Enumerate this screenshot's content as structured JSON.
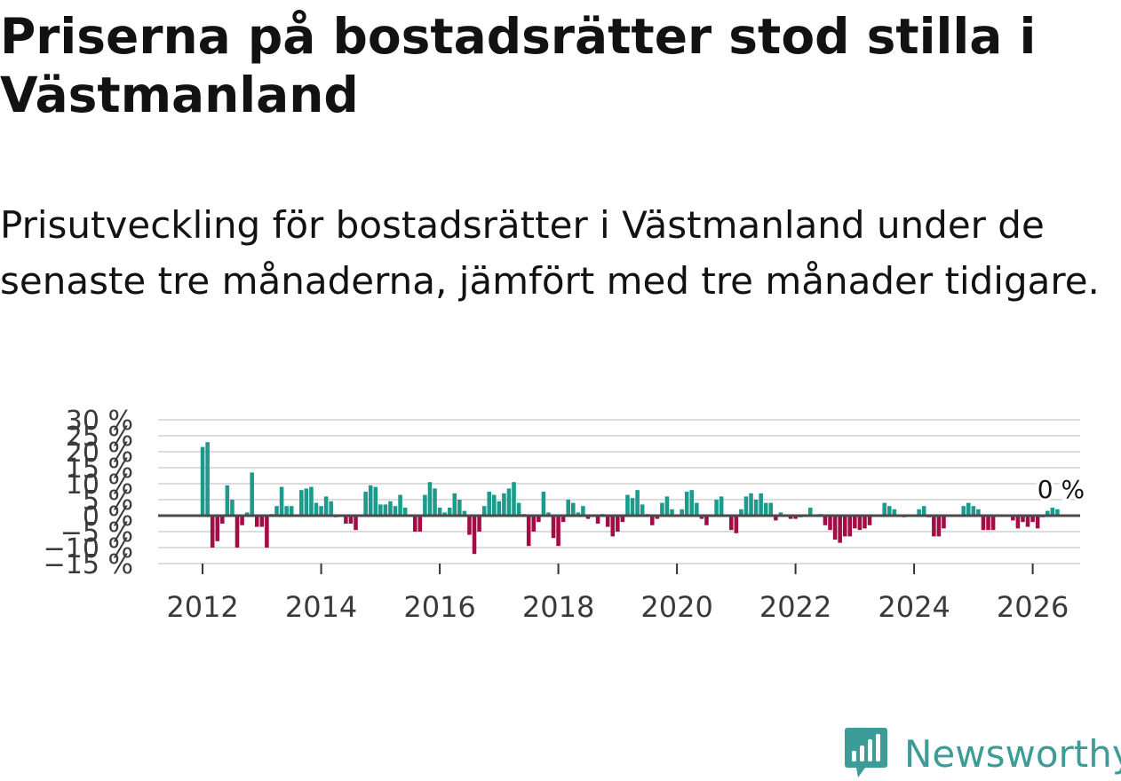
{
  "colors": {
    "positive": "#1a9b8b",
    "negative": "#a30c45",
    "zero_line": "#4a4a4a",
    "grid": "#dcdcdc",
    "brand": "#3d9c97"
  },
  "logo": {
    "text": "Newsworthy",
    "icon": "newsworthy-logo-icon"
  },
  "chart_data": {
    "type": "bar",
    "title": "Priserna på bostadsrätter stod stilla i Västmanland",
    "subtitle": "Prisutveckling för bostadsrätter i Västmanland under de senaste tre månaderna, jämfört med tre månader tidigare.",
    "xlabel": "",
    "ylabel": "",
    "ylim": [
      -15,
      30
    ],
    "xlim": [
      2011.25,
      2026.8
    ],
    "y_ticks": [
      -15,
      -10,
      -5,
      0,
      5,
      10,
      15,
      20,
      25,
      30
    ],
    "y_tick_labels": [
      "−15 %",
      "−10 %",
      "−5 %",
      "0 %",
      "5 %",
      "10 %",
      "15 %",
      "20 %",
      "25 %",
      "30 %"
    ],
    "x_ticks": [
      2012,
      2014,
      2016,
      2018,
      2020,
      2022,
      2024,
      2026
    ],
    "x_tick_labels": [
      "2012",
      "2014",
      "2016",
      "2018",
      "2020",
      "2022",
      "2024",
      "2026"
    ],
    "annotation": "0 %",
    "start": [
      2012,
      1
    ],
    "values": [
      21.5,
      23.0,
      -10.0,
      -8.0,
      -2.5,
      9.5,
      5.0,
      -10.0,
      -3.0,
      1.0,
      13.5,
      -3.5,
      -3.5,
      -10.0,
      0.5,
      3.0,
      9.0,
      3.0,
      3.0,
      0.0,
      8.0,
      8.5,
      9.0,
      4.0,
      3.0,
      6.0,
      4.5,
      -0.5,
      0.0,
      -2.5,
      -2.5,
      -4.5,
      0.0,
      7.5,
      9.5,
      9.0,
      3.5,
      3.5,
      4.5,
      3.0,
      6.5,
      2.5,
      0.0,
      -5.0,
      -5.0,
      6.5,
      10.5,
      8.5,
      2.5,
      1.0,
      2.5,
      7.0,
      5.0,
      1.5,
      -6.0,
      -12.0,
      -5.0,
      3.0,
      7.5,
      6.5,
      4.5,
      7.0,
      8.5,
      10.5,
      4.0,
      0.5,
      -9.5,
      -5.0,
      -2.0,
      7.5,
      1.0,
      -7.0,
      -9.5,
      -2.0,
      5.0,
      4.0,
      1.0,
      3.0,
      -1.0,
      0.0,
      -2.5,
      0.5,
      -3.5,
      -6.5,
      -5.0,
      -2.0,
      6.5,
      5.5,
      8.0,
      3.5,
      0.5,
      -3.0,
      -1.0,
      4.0,
      6.0,
      2.0,
      0.0,
      2.0,
      7.5,
      8.0,
      4.0,
      -1.0,
      -3.0,
      0.0,
      5.0,
      6.0,
      0.0,
      -4.5,
      -5.5,
      2.0,
      6.0,
      7.0,
      5.0,
      7.0,
      4.0,
      4.0,
      -1.5,
      1.0,
      0.0,
      -1.0,
      -1.0,
      -0.5,
      0.0,
      2.5,
      0.0,
      0.5,
      -3.0,
      -4.5,
      -7.5,
      -8.5,
      -6.5,
      -6.5,
      -4.0,
      -4.5,
      -4.0,
      -3.0,
      0.0,
      0.0,
      4.0,
      3.0,
      2.0,
      0.0,
      -0.5,
      0.0,
      0.0,
      2.0,
      3.0,
      -0.5,
      -6.5,
      -6.5,
      -4.0,
      0.0,
      0.0,
      0.0,
      3.0,
      4.0,
      3.0,
      2.0,
      -4.5,
      -4.5,
      -4.5,
      0.0,
      0.0,
      0.0,
      -1.5,
      -4.0,
      -2.0,
      -3.5,
      -2.0,
      -4.0,
      -0.5,
      1.5,
      2.5,
      2.0
    ]
  }
}
